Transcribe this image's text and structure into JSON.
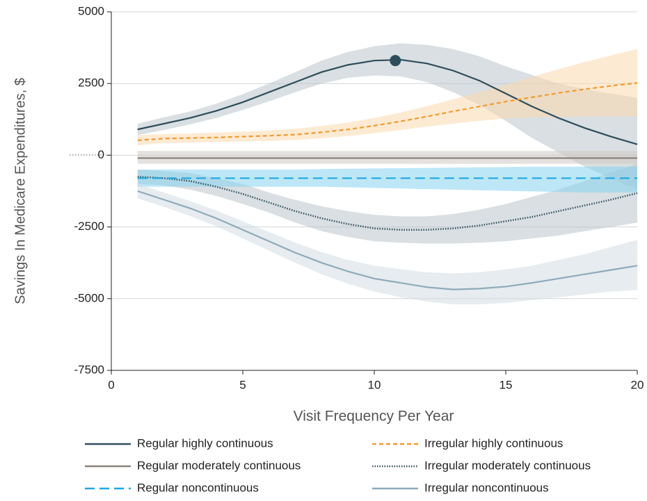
{
  "chart_data": {
    "type": "line",
    "y_label": "Savings In Medicare Expenditures, $",
    "x_label": "Visit Frequency Per Year",
    "xlim": [
      0,
      20
    ],
    "xticks": [
      0,
      5,
      10,
      15,
      20
    ],
    "ylim": [
      -7500,
      5000
    ],
    "yticks": [
      5000,
      2500,
      0,
      -2500,
      -5000,
      -7500
    ],
    "grid": true,
    "x": [
      1,
      2,
      3,
      4,
      5,
      6,
      7,
      8,
      9,
      10,
      11,
      12,
      13,
      14,
      15,
      16,
      17,
      18,
      19,
      20
    ],
    "highlight": {
      "x": 10.8,
      "y": 3300,
      "color": "#2e4d5c"
    },
    "series": [
      {
        "name": "Regular highly continuous",
        "color": "#2e4d5c",
        "band_color": "#b9c4ca",
        "style": "solid",
        "values": [
          900,
          1100,
          1300,
          1550,
          1850,
          2200,
          2550,
          2900,
          3150,
          3300,
          3330,
          3200,
          2950,
          2600,
          2150,
          1700,
          1300,
          950,
          650,
          380
        ],
        "lower": [
          700,
          880,
          1080,
          1300,
          1580,
          1880,
          2200,
          2500,
          2700,
          2780,
          2750,
          2550,
          2200,
          1750,
          1200,
          600,
          100,
          -400,
          -800,
          -1200
        ],
        "upper": [
          1100,
          1320,
          1530,
          1800,
          2130,
          2500,
          2900,
          3300,
          3600,
          3800,
          3900,
          3850,
          3700,
          3450,
          3100,
          2800,
          2500,
          2300,
          2150,
          2000
        ]
      },
      {
        "name": "Irregular highly continuous",
        "color": "#f39a2e",
        "band_color": "#fbd8ad",
        "style": "dashed",
        "values": [
          520,
          580,
          600,
          620,
          650,
          680,
          720,
          800,
          900,
          1030,
          1180,
          1350,
          1530,
          1700,
          1870,
          2020,
          2170,
          2300,
          2420,
          2520
        ],
        "lower": [
          350,
          420,
          440,
          460,
          480,
          500,
          530,
          590,
          670,
          770,
          880,
          1000,
          1100,
          1200,
          1280,
          1320,
          1340,
          1350,
          1350,
          1350
        ],
        "upper": [
          700,
          740,
          760,
          790,
          820,
          860,
          920,
          1020,
          1140,
          1300,
          1490,
          1710,
          1950,
          2200,
          2460,
          2730,
          3000,
          3250,
          3480,
          3700
        ]
      },
      {
        "name": "Regular moderately continuous",
        "color": "#8c8279",
        "band_color": "#cfc9c3",
        "style": "solid",
        "values": [
          -100,
          -100,
          -100,
          -100,
          -100,
          -100,
          -100,
          -100,
          -100,
          -100,
          -100,
          -100,
          -100,
          -100,
          -100,
          -100,
          -100,
          -100,
          -100,
          -100
        ],
        "lower": [
          -300,
          -300,
          -300,
          -300,
          -300,
          -300,
          -300,
          -300,
          -300,
          -300,
          -300,
          -300,
          -300,
          -300,
          -300,
          -300,
          -300,
          -300,
          -300,
          -300
        ],
        "upper": [
          150,
          150,
          150,
          150,
          150,
          150,
          150,
          150,
          150,
          150,
          150,
          150,
          150,
          150,
          150,
          150,
          150,
          150,
          150,
          150
        ]
      },
      {
        "name": "Irregular moderately continuous",
        "color": "#2e4d5c",
        "band_color": "#b9c4ca",
        "style": "dotted",
        "values": [
          -750,
          -800,
          -900,
          -1100,
          -1350,
          -1650,
          -1950,
          -2200,
          -2400,
          -2550,
          -2600,
          -2600,
          -2550,
          -2450,
          -2300,
          -2150,
          -1950,
          -1750,
          -1550,
          -1320
        ],
        "lower": [
          -1000,
          -1050,
          -1200,
          -1420,
          -1700,
          -2000,
          -2350,
          -2650,
          -2850,
          -3000,
          -3050,
          -3080,
          -3080,
          -3050,
          -3000,
          -2900,
          -2800,
          -2650,
          -2500,
          -2350
        ],
        "upper": [
          -500,
          -550,
          -620,
          -800,
          -1000,
          -1300,
          -1560,
          -1780,
          -1950,
          -2080,
          -2130,
          -2130,
          -2050,
          -1900,
          -1700,
          -1450,
          -1200,
          -900,
          -600,
          -300
        ]
      },
      {
        "name": "Regular noncontinuous",
        "color": "#1ba9e1",
        "band_color": "#86d4f1",
        "style": "longdash",
        "values": [
          -800,
          -800,
          -800,
          -800,
          -800,
          -800,
          -800,
          -800,
          -800,
          -800,
          -800,
          -800,
          -800,
          -800,
          -800,
          -800,
          -800,
          -800,
          -800,
          -800
        ],
        "lower": [
          -1100,
          -1100,
          -1100,
          -1100,
          -1100,
          -1100,
          -1100,
          -1100,
          -1120,
          -1140,
          -1160,
          -1180,
          -1200,
          -1220,
          -1240,
          -1260,
          -1280,
          -1300,
          -1300,
          -1300
        ],
        "upper": [
          -500,
          -500,
          -500,
          -500,
          -500,
          -500,
          -500,
          -480,
          -470,
          -460,
          -450,
          -440,
          -430,
          -420,
          -410,
          -400,
          -400,
          -400,
          -400,
          -400
        ]
      },
      {
        "name": "Irregular noncontinuous",
        "color": "#8eaabb",
        "band_color": "#d2dce2",
        "style": "solid",
        "values": [
          -1250,
          -1550,
          -1850,
          -2200,
          -2600,
          -3000,
          -3400,
          -3750,
          -4050,
          -4300,
          -4450,
          -4600,
          -4680,
          -4650,
          -4580,
          -4450,
          -4300,
          -4150,
          -4000,
          -3850
        ],
        "lower": [
          -1500,
          -1800,
          -2120,
          -2480,
          -2900,
          -3330,
          -3750,
          -4150,
          -4480,
          -4750,
          -4950,
          -5100,
          -5200,
          -5200,
          -5150,
          -5050,
          -4950,
          -4850,
          -4750,
          -4700
        ],
        "upper": [
          -1000,
          -1300,
          -1600,
          -1930,
          -2300,
          -2680,
          -3050,
          -3380,
          -3650,
          -3850,
          -3970,
          -4080,
          -4120,
          -4080,
          -3980,
          -3850,
          -3650,
          -3450,
          -3200,
          -2950
        ]
      }
    ]
  }
}
